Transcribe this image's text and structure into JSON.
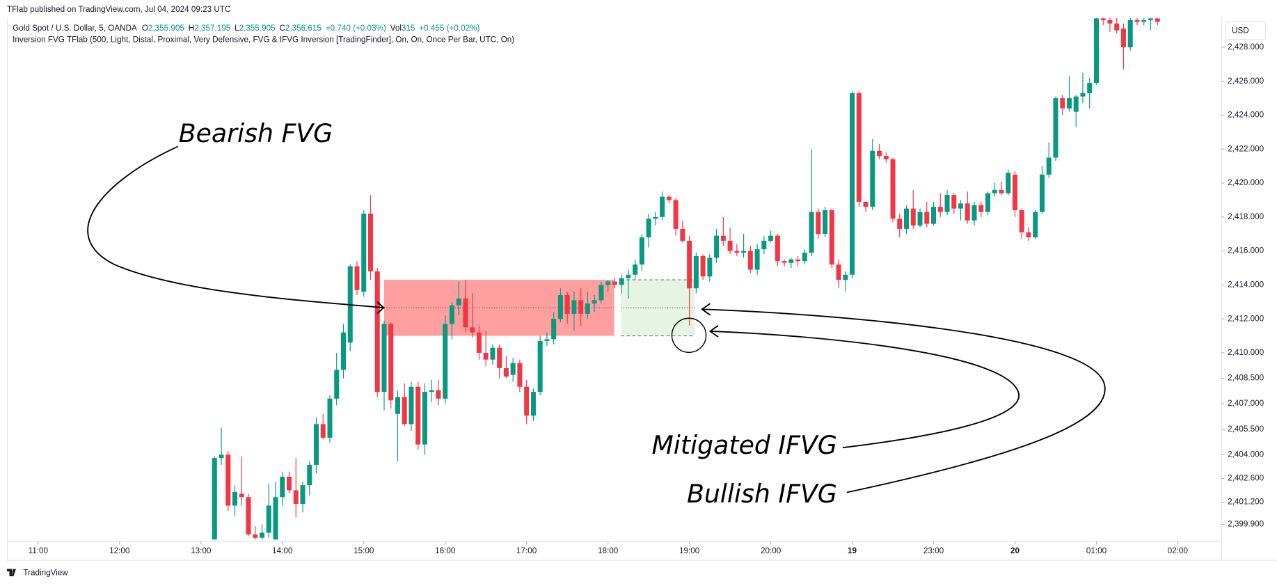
{
  "published": "TFlab published on TradingView.com, Jul 04, 2024 09:23 UTC",
  "brand": "TradingView",
  "chart_data": {
    "type": "candlestick",
    "title": "Gold Spot / U.S. Dollar, 5, OANDA",
    "ohlc": [
      {
        "key": "O",
        "value": "2,355.905"
      },
      {
        "key": "H",
        "value": "2,357.195"
      },
      {
        "key": "L",
        "value": "2,355.905"
      },
      {
        "key": "C",
        "value": "2,356.615"
      }
    ],
    "change": "+0.740 (+0.03%)",
    "volume_label": "Vol",
    "volume": "315",
    "volume_change": "+0.455 (+0.02%)",
    "subtitle": "Inversion FVG TFlab (500, Light, Distal, Proximal, Very Defensive, FVG & IFVG Inversion [TradingFinder], On, On, Once Per Bar, UTC, On)",
    "currency": "USD",
    "annotations": [
      "Bearish FVG",
      "Mitigated IFVG",
      "Bullish IFVG"
    ],
    "up_color": "#089981",
    "down_color": "#f23645",
    "open": [
      2399.0,
      2403.8,
      2404.0,
      2401.0,
      2401.7,
      2401.5,
      2399.3,
      2399.1,
      2399.4,
      2399.0,
      2401.5,
      2402.7,
      2401.9,
      2401.1,
      2402.2,
      2403.4,
      2405.8,
      2405.0,
      2407.3,
      2409.0,
      2410.6,
      2415.1,
      2413.6,
      2418.2,
      2414.8,
      2407.7,
      2411.7,
      2406.4,
      2407.4,
      2405.8,
      2408.0,
      2404.6,
      2407.7,
      2407.8,
      2407.3,
      2411.7,
      2412.8,
      2413.2,
      2411.5,
      2411.2,
      2410.0,
      2409.6,
      2410.3,
      2409.1,
      2408.7,
      2409.4,
      2408.0,
      2406.3,
      2407.7,
      2410.7,
      2410.8,
      2412.0,
      2413.4,
      2412.3,
      2413.1,
      2412.3,
      2412.9,
      2413.1,
      2414.0,
      2414.2,
      2414.0,
      2414.4,
      2414.6,
      2415.2,
      2416.8,
      2417.9,
      2418.0,
      2419.2,
      2419.0,
      2417.3,
      2416.6,
      2413.8,
      2415.7,
      2414.5,
      2415.6,
      2416.9,
      2416.6,
      2416.0,
      2415.9,
      2416.0,
      2414.9,
      2416.1,
      2416.6,
      2416.9,
      2415.4,
      2415.3,
      2415.5,
      2415.4,
      2415.9,
      2418.3,
      2417.0,
      2418.4,
      2415.2,
      2414.3,
      2414.6,
      2425.3,
      2418.9,
      2418.6,
      2421.9,
      2421.6,
      2421.4,
      2417.9,
      2417.3,
      2418.5,
      2417.5,
      2418.3,
      2417.6,
      2418.6,
      2418.3,
      2419.3,
      2418.5,
      2418.8,
      2417.8,
      2418.7,
      2418.3,
      2419.4,
      2419.6,
      2419.4,
      2420.5,
      2418.4,
      2417.1,
      2416.8,
      2418.3,
      2420.5,
      2421.5,
      2425.0,
      2424.4,
      2424.2,
      2425.1,
      2425.3,
      2425.9,
      2429.7,
      2429.6,
      2429.4,
      2429.1,
      2428.0,
      2429.6,
      2429.5,
      2429.6,
      2429.7
    ],
    "high": [
      2403.9,
      2405.6,
      2404.2,
      2402.2,
      2403.9,
      2401.7,
      2399.8,
      2399.9,
      2402.3,
      2402.4,
      2403.0,
      2403.0,
      2403.8,
      2402.4,
      2403.6,
      2406.2,
      2406.4,
      2407.5,
      2410.0,
      2411.7,
      2415.2,
      2415.4,
      2418.4,
      2419.3,
      2415.0,
      2411.9,
      2411.8,
      2407.8,
      2408.2,
      2408.3,
      2408.3,
      2408.2,
      2408.4,
      2408.4,
      2412.2,
      2413.0,
      2414.2,
      2414.3,
      2413.5,
      2411.6,
      2411.3,
      2410.5,
      2410.5,
      2409.8,
      2409.7,
      2409.6,
      2408.4,
      2407.9,
      2411.0,
      2411.2,
      2412.4,
      2413.8,
      2413.6,
      2413.6,
      2413.8,
      2413.6,
      2413.4,
      2414.2,
      2414.3,
      2414.4,
      2414.6,
      2414.9,
      2415.5,
      2417.0,
      2418.2,
      2418.3,
      2419.5,
      2419.3,
      2419.1,
      2417.8,
      2416.9,
      2415.9,
      2415.8,
      2415.8,
      2417.3,
      2418.0,
      2417.4,
      2416.4,
      2417.0,
      2416.3,
      2416.4,
      2416.9,
      2417.2,
      2417.0,
      2415.5,
      2415.6,
      2415.7,
      2416.1,
      2422.0,
      2418.5,
      2418.6,
      2418.5,
      2415.5,
      2414.8,
      2425.4,
      2425.4,
      2418.9,
      2422.6,
      2422.3,
      2421.8,
      2421.5,
      2418.2,
      2418.7,
      2419.6,
      2418.5,
      2418.9,
      2418.9,
      2419.4,
      2419.6,
      2419.4,
      2419.0,
      2419.5,
      2418.9,
      2418.9,
      2419.5,
      2420.0,
      2420.1,
      2420.8,
      2420.7,
      2418.5,
      2417.4,
      2418.4,
      2421.0,
      2422.4,
      2425.1,
      2425.2,
      2426.3,
      2425.2,
      2426.5,
      2426.2,
      2429.8,
      2429.8,
      2429.8,
      2429.8,
      2429.4,
      2429.8,
      2429.8,
      2429.8,
      2429.8,
      2429.8
    ],
    "low": [
      2399.0,
      2403.4,
      2400.7,
      2400.4,
      2401.0,
      2399.2,
      2399.0,
      2399.0,
      2399.1,
      2399.0,
      2401.0,
      2401.7,
      2400.3,
      2400.6,
      2401.6,
      2402.9,
      2404.9,
      2404.7,
      2406.9,
      2408.5,
      2410.1,
      2413.4,
      2413.3,
      2414.3,
      2407.4,
      2406.6,
      2406.7,
      2403.6,
      2405.7,
      2405.4,
      2404.3,
      2404.0,
      2407.1,
      2406.9,
      2407.0,
      2410.8,
      2412.2,
      2411.2,
      2410.9,
      2409.6,
      2409.2,
      2409.3,
      2408.5,
      2408.5,
      2408.3,
      2407.7,
      2405.8,
      2406.0,
      2407.5,
      2410.4,
      2410.5,
      2411.8,
      2411.7,
      2411.3,
      2411.6,
      2412.0,
      2412.4,
      2412.9,
      2413.6,
      2413.8,
      2413.5,
      2413.2,
      2414.3,
      2414.8,
      2416.2,
      2417.5,
      2417.8,
      2418.8,
      2416.9,
      2416.5,
      2411.6,
      2413.5,
      2414.3,
      2414.2,
      2415.3,
      2416.3,
      2415.8,
      2415.7,
      2415.6,
      2414.7,
      2414.6,
      2415.8,
      2416.5,
      2415.1,
      2415.1,
      2415.0,
      2415.1,
      2415.2,
      2415.7,
      2416.7,
      2416.8,
      2415.0,
      2413.8,
      2413.6,
      2414.4,
      2418.6,
      2418.3,
      2418.4,
      2421.4,
      2421.2,
      2417.7,
      2416.8,
      2417.0,
      2417.3,
      2417.4,
      2417.4,
      2417.5,
      2418.0,
      2418.1,
      2418.2,
      2417.8,
      2417.6,
      2417.5,
      2418.0,
      2418.1,
      2419.2,
      2419.3,
      2419.3,
      2418.0,
      2416.7,
      2416.6,
      2416.7,
      2418.2,
      2420.3,
      2421.3,
      2424.0,
      2424.2,
      2423.3,
      2424.7,
      2424.4,
      2425.8,
      2429.3,
      2428.9,
      2428.8,
      2426.7,
      2427.8,
      2429.3,
      2429.3,
      2429.0,
      2429.3
    ],
    "close": [
      2403.8,
      2404.0,
      2401.0,
      2401.8,
      2401.5,
      2399.3,
      2399.1,
      2399.4,
      2401.0,
      2401.5,
      2402.7,
      2401.9,
      2401.1,
      2402.2,
      2403.4,
      2405.8,
      2405.0,
      2407.3,
      2409.0,
      2411.2,
      2415.1,
      2413.7,
      2418.2,
      2414.8,
      2407.7,
      2411.7,
      2407.2,
      2407.4,
      2405.8,
      2408.0,
      2404.6,
      2407.7,
      2407.8,
      2407.3,
      2411.7,
      2412.8,
      2413.2,
      2411.5,
      2411.2,
      2410.0,
      2409.6,
      2410.3,
      2409.1,
      2408.6,
      2409.4,
      2408.0,
      2406.3,
      2407.7,
      2410.7,
      2410.8,
      2412.0,
      2413.4,
      2412.3,
      2413.1,
      2412.3,
      2412.9,
      2413.1,
      2414.0,
      2414.2,
      2414.0,
      2414.4,
      2414.6,
      2415.2,
      2416.8,
      2417.9,
      2418.0,
      2419.2,
      2419.0,
      2417.3,
      2416.6,
      2413.8,
      2415.7,
      2414.5,
      2415.6,
      2416.9,
      2416.6,
      2416.0,
      2415.9,
      2416.0,
      2414.9,
      2416.1,
      2416.6,
      2416.9,
      2415.4,
      2415.3,
      2415.5,
      2415.4,
      2415.9,
      2418.3,
      2417.0,
      2418.4,
      2415.2,
      2414.3,
      2414.6,
      2425.3,
      2418.9,
      2418.6,
      2421.9,
      2421.6,
      2421.4,
      2417.9,
      2417.3,
      2418.5,
      2417.5,
      2418.3,
      2417.6,
      2418.6,
      2418.3,
      2419.3,
      2418.5,
      2418.8,
      2417.8,
      2418.7,
      2418.3,
      2419.4,
      2419.6,
      2419.4,
      2420.6,
      2418.4,
      2417.1,
      2416.8,
      2418.3,
      2420.5,
      2421.5,
      2425.0,
      2424.4,
      2425.0,
      2425.1,
      2425.3,
      2425.9,
      2429.7,
      2429.6,
      2429.4,
      2429.0,
      2428.0,
      2429.6,
      2429.5,
      2429.6,
      2429.7,
      2429.5
    ],
    "zones": [
      {
        "start": 25,
        "end": 58.9,
        "top": 2414.3,
        "bottom": 2411.0,
        "mid": 2412.65,
        "color": "#ff9f9f"
      },
      {
        "start": 59.9,
        "end": 70.8,
        "top": 2414.3,
        "bottom": 2411.0,
        "mid": 2412.65,
        "color": "#e6f4e4",
        "border": "dashed"
      }
    ],
    "xlim": [
      -30.6,
      148.4
    ],
    "xticks": [
      {
        "value": -26,
        "label": "11:00"
      },
      {
        "value": -14,
        "label": "12:00"
      },
      {
        "value": -2,
        "label": "13:00"
      },
      {
        "value": 10,
        "label": "14:00"
      },
      {
        "value": 22,
        "label": "15:00"
      },
      {
        "value": 34,
        "label": "16:00"
      },
      {
        "value": 46,
        "label": "17:00"
      },
      {
        "value": 58,
        "label": "18:00"
      },
      {
        "value": 70,
        "label": "19:00"
      },
      {
        "value": 82,
        "label": "20:00"
      },
      {
        "value": 94,
        "label": "19"
      },
      {
        "value": 106,
        "label": "23:00"
      },
      {
        "value": 118,
        "label": "20"
      },
      {
        "value": 130,
        "label": "01:00"
      },
      {
        "value": 142,
        "label": "02:00"
      }
    ],
    "ylim": [
      2398.9,
      2429.73
    ],
    "yticks": [
      {
        "value": 2428,
        "label": "2,428.000"
      },
      {
        "value": 2426,
        "label": "2,426.000"
      },
      {
        "value": 2424,
        "label": "2,424.000"
      },
      {
        "value": 2422,
        "label": "2,422.000"
      },
      {
        "value": 2420,
        "label": "2,420.000"
      },
      {
        "value": 2418,
        "label": "2,418.000"
      },
      {
        "value": 2416,
        "label": "2,416.000"
      },
      {
        "value": 2414,
        "label": "2,414.000"
      },
      {
        "value": 2412,
        "label": "2,412.000"
      },
      {
        "value": 2410,
        "label": "2,410.000"
      },
      {
        "value": 2408.5,
        "label": "2,408.500"
      },
      {
        "value": 2407,
        "label": "2,407.000"
      },
      {
        "value": 2405.5,
        "label": "2,405.500"
      },
      {
        "value": 2404,
        "label": "2,404.000"
      },
      {
        "value": 2402.6,
        "label": "2,402.600"
      },
      {
        "value": 2401.2,
        "label": "2,401.200"
      },
      {
        "value": 2399.9,
        "label": "2,399.900"
      }
    ]
  }
}
